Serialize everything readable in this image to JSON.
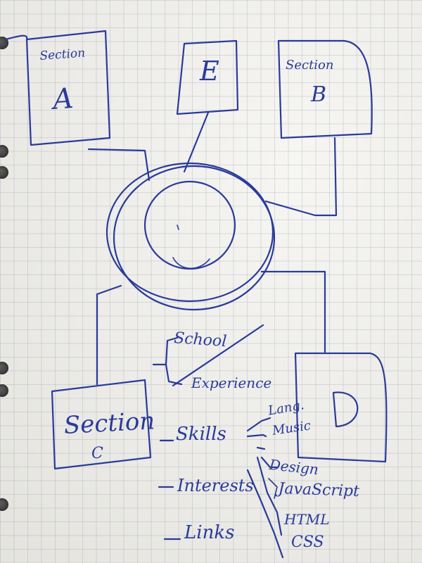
{
  "section_a": {
    "title": "Section",
    "letter": "A"
  },
  "section_e": {
    "letter": "E"
  },
  "section_b": {
    "title": "Section",
    "letter": "B"
  },
  "section_c": {
    "title": "Section",
    "letter": "C"
  },
  "section_d": {
    "letter": "D"
  },
  "school": "School",
  "experience": "Experience",
  "skills": "Skills",
  "lang": "Lang.",
  "music": "Music",
  "design": "Design",
  "javascript": "JavaScript",
  "html": "HTML",
  "css": "CSS",
  "interests": "Interests",
  "links": "Links"
}
